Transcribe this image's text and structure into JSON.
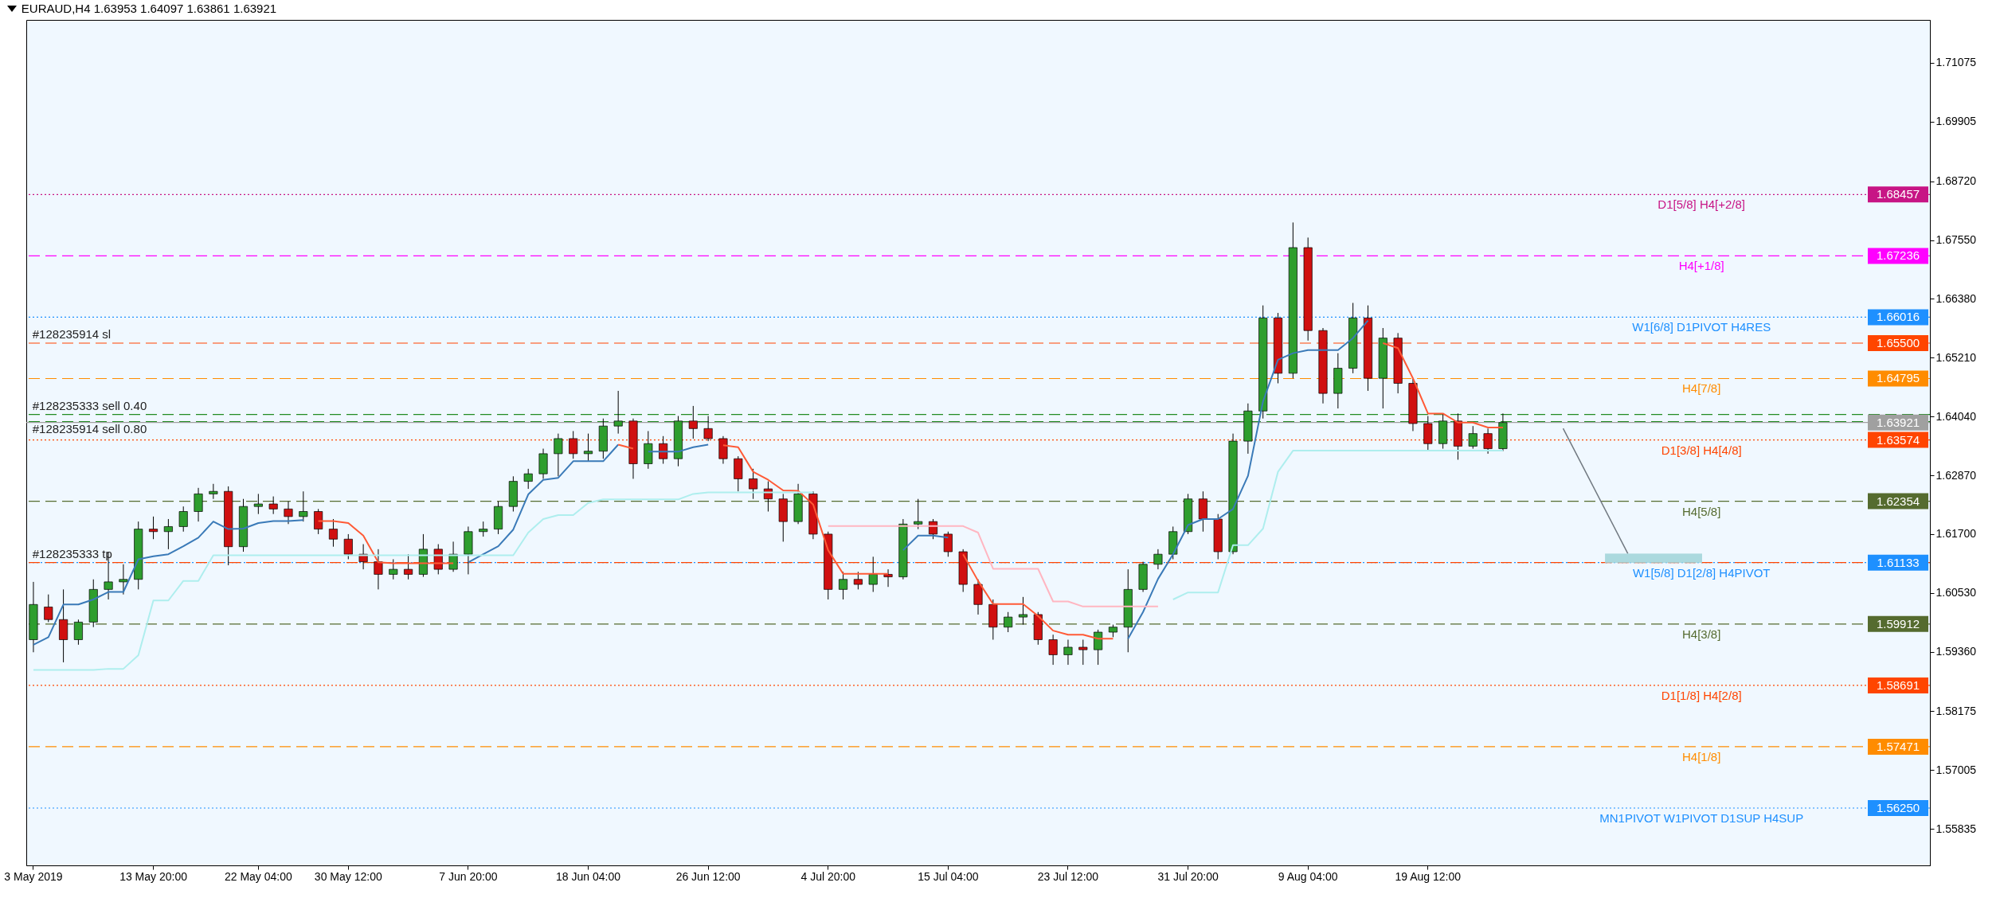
{
  "chart_data": {
    "type": "candlestick",
    "title": "EURAUD,H4  1.63953 1.64097 1.63861 1.63921",
    "categories": [
      "3 May 2019",
      null,
      null,
      null,
      null,
      null,
      null,
      null,
      "13 May 20:00",
      null,
      null,
      null,
      null,
      null,
      null,
      "22 May 04:00",
      null,
      null,
      null,
      null,
      null,
      "30 May 12:00",
      null,
      null,
      null,
      null,
      null,
      null,
      null,
      "7 Jun 20:00",
      null,
      null,
      null,
      null,
      null,
      null,
      null,
      "18 Jun 04:00",
      null,
      null,
      null,
      null,
      null,
      null,
      null,
      "26 Jun 12:00",
      null,
      null,
      null,
      null,
      null,
      null,
      null,
      "4 Jul 20:00",
      null,
      null,
      null,
      null,
      null,
      null,
      null,
      "15 Jul 04:00",
      null,
      null,
      null,
      null,
      null,
      null,
      null,
      "23 Jul 12:00",
      null,
      null,
      null,
      null,
      null,
      null,
      null,
      "31 Jul 20:00",
      null,
      null,
      null,
      null,
      null,
      null,
      null,
      "9 Aug 04:00",
      null,
      null,
      null,
      null,
      null,
      null,
      null,
      "19 Aug 12:00",
      null,
      null,
      null,
      null,
      null,
      null,
      null,
      null,
      null,
      null,
      null,
      null,
      null,
      null,
      null,
      null,
      null,
      null,
      null,
      null,
      null,
      null,
      null,
      null,
      null,
      null,
      null,
      null,
      null,
      null,
      null,
      null,
      null
    ],
    "ohlc": [
      [
        1.596,
        1.6075,
        1.5935,
        1.603
      ],
      [
        1.6025,
        1.605,
        1.5995,
        1.6
      ],
      [
        1.6,
        1.606,
        1.5915,
        1.596
      ],
      [
        1.596,
        1.6,
        1.595,
        1.5995
      ],
      [
        1.5995,
        1.608,
        1.5985,
        1.606
      ],
      [
        1.606,
        1.6135,
        1.604,
        1.6075
      ],
      [
        1.6075,
        1.611,
        1.605,
        1.608
      ],
      [
        1.608,
        1.6195,
        1.606,
        1.618
      ],
      [
        1.618,
        1.6205,
        1.616,
        1.6175
      ],
      [
        1.6175,
        1.62,
        1.614,
        1.6185
      ],
      [
        1.6185,
        1.6225,
        1.6175,
        1.6215
      ],
      [
        1.6215,
        1.6262,
        1.6195,
        1.625
      ],
      [
        1.625,
        1.627,
        1.624,
        1.6255
      ],
      [
        1.6255,
        1.6265,
        1.6108,
        1.6145
      ],
      [
        1.6145,
        1.624,
        1.6135,
        1.6225
      ],
      [
        1.6225,
        1.625,
        1.621,
        1.623
      ],
      [
        1.623,
        1.6245,
        1.621,
        1.622
      ],
      [
        1.622,
        1.6235,
        1.619,
        1.6205
      ],
      [
        1.6205,
        1.6255,
        1.6195,
        1.6215
      ],
      [
        1.6215,
        1.622,
        1.617,
        1.618
      ],
      [
        1.618,
        1.62,
        1.6145,
        1.616
      ],
      [
        1.616,
        1.617,
        1.612,
        1.613
      ],
      [
        1.613,
        1.615,
        1.61,
        1.6115
      ],
      [
        1.6115,
        1.614,
        1.606,
        1.609
      ],
      [
        1.609,
        1.612,
        1.608,
        1.61
      ],
      [
        1.61,
        1.613,
        1.608,
        1.609
      ],
      [
        1.609,
        1.617,
        1.6085,
        1.614
      ],
      [
        1.614,
        1.615,
        1.609,
        1.61
      ],
      [
        1.61,
        1.6155,
        1.6095,
        1.613
      ],
      [
        1.613,
        1.6185,
        1.609,
        1.6175
      ],
      [
        1.6175,
        1.6195,
        1.6165,
        1.618
      ],
      [
        1.618,
        1.6235,
        1.617,
        1.6225
      ],
      [
        1.6225,
        1.6285,
        1.6215,
        1.6275
      ],
      [
        1.6275,
        1.63,
        1.626,
        1.629
      ],
      [
        1.629,
        1.634,
        1.628,
        1.633
      ],
      [
        1.633,
        1.637,
        1.6285,
        1.636
      ],
      [
        1.636,
        1.6375,
        1.632,
        1.633
      ],
      [
        1.633,
        1.637,
        1.6315,
        1.6335
      ],
      [
        1.6335,
        1.64,
        1.632,
        1.6385
      ],
      [
        1.6385,
        1.6455,
        1.637,
        1.6395
      ],
      [
        1.6395,
        1.64,
        1.628,
        1.631
      ],
      [
        1.631,
        1.6375,
        1.63,
        1.635
      ],
      [
        1.635,
        1.6365,
        1.631,
        1.632
      ],
      [
        1.632,
        1.6405,
        1.6305,
        1.6395
      ],
      [
        1.6395,
        1.6425,
        1.636,
        1.638
      ],
      [
        1.638,
        1.6405,
        1.6355,
        1.636
      ],
      [
        1.636,
        1.6365,
        1.631,
        1.632
      ],
      [
        1.632,
        1.6325,
        1.6255,
        1.628
      ],
      [
        1.628,
        1.63,
        1.624,
        1.626
      ],
      [
        1.626,
        1.6275,
        1.6215,
        1.624
      ],
      [
        1.624,
        1.625,
        1.6155,
        1.6195
      ],
      [
        1.6195,
        1.627,
        1.619,
        1.625
      ],
      [
        1.625,
        1.6255,
        1.616,
        1.617
      ],
      [
        1.617,
        1.6175,
        1.604,
        1.606
      ],
      [
        1.606,
        1.6095,
        1.604,
        1.608
      ],
      [
        1.608,
        1.6095,
        1.606,
        1.607
      ],
      [
        1.607,
        1.6125,
        1.6055,
        1.609
      ],
      [
        1.609,
        1.61,
        1.6065,
        1.6085
      ],
      [
        1.6085,
        1.62,
        1.608,
        1.619
      ],
      [
        1.619,
        1.624,
        1.618,
        1.6195
      ],
      [
        1.6195,
        1.62,
        1.616,
        1.617
      ],
      [
        1.617,
        1.6175,
        1.6125,
        1.6135
      ],
      [
        1.6135,
        1.614,
        1.6055,
        1.607
      ],
      [
        1.607,
        1.608,
        1.601,
        1.603
      ],
      [
        1.603,
        1.604,
        1.596,
        1.5985
      ],
      [
        1.5985,
        1.6015,
        1.5975,
        1.6005
      ],
      [
        1.6005,
        1.6045,
        1.599,
        1.601
      ],
      [
        1.601,
        1.6015,
        1.595,
        1.596
      ],
      [
        1.596,
        1.597,
        1.591,
        1.593
      ],
      [
        1.593,
        1.596,
        1.591,
        1.5945
      ],
      [
        1.5945,
        1.596,
        1.591,
        1.594
      ],
      [
        1.594,
        1.598,
        1.591,
        1.5975
      ],
      [
        1.5975,
        1.599,
        1.5965,
        1.5985
      ],
      [
        1.5985,
        1.61,
        1.5935,
        1.606
      ],
      [
        1.606,
        1.6115,
        1.6055,
        1.611
      ],
      [
        1.611,
        1.614,
        1.61,
        1.613
      ],
      [
        1.613,
        1.6185,
        1.612,
        1.6175
      ],
      [
        1.6175,
        1.625,
        1.617,
        1.624
      ],
      [
        1.624,
        1.6255,
        1.6175,
        1.62
      ],
      [
        1.62,
        1.621,
        1.612,
        1.6135
      ],
      [
        1.6135,
        1.637,
        1.613,
        1.6355
      ],
      [
        1.6355,
        1.643,
        1.633,
        1.6415
      ],
      [
        1.6415,
        1.6625,
        1.64,
        1.66
      ],
      [
        1.66,
        1.661,
        1.647,
        1.649
      ],
      [
        1.649,
        1.679,
        1.648,
        1.674
      ],
      [
        1.674,
        1.676,
        1.6555,
        1.6575
      ],
      [
        1.6575,
        1.658,
        1.643,
        1.645
      ],
      [
        1.645,
        1.653,
        1.642,
        1.65
      ],
      [
        1.65,
        1.663,
        1.649,
        1.66
      ],
      [
        1.66,
        1.6625,
        1.6455,
        1.648
      ],
      [
        1.648,
        1.658,
        1.642,
        1.656
      ],
      [
        1.656,
        1.657,
        1.645,
        1.647
      ],
      [
        1.647,
        1.648,
        1.6375,
        1.639
      ],
      [
        1.639,
        1.6405,
        1.6335,
        1.635
      ],
      [
        1.635,
        1.641,
        1.634,
        1.6395
      ],
      [
        1.6395,
        1.641,
        1.6318,
        1.6345
      ],
      [
        1.6345,
        1.6385,
        1.634,
        1.637
      ],
      [
        1.637,
        1.638,
        1.633,
        1.634
      ],
      [
        1.634,
        1.641,
        1.6335,
        1.6392
      ],
      null,
      null,
      null,
      null,
      null,
      null,
      null,
      null,
      null,
      null,
      null,
      null,
      null,
      null,
      null,
      null,
      null,
      null,
      null,
      null,
      null,
      null,
      null,
      null,
      null,
      null,
      null,
      null
    ],
    "series": [
      {
        "type": "line",
        "color": "#3a7ab8",
        "values": [
          1.595,
          1.5965,
          1.603,
          1.603,
          1.604,
          1.6055,
          1.6055,
          1.612,
          1.6126,
          1.613,
          1.6146,
          1.6163,
          1.6195,
          1.618,
          1.6181,
          1.6192,
          1.6196,
          1.6196,
          1.6198,
          null,
          null,
          null,
          null,
          null,
          null,
          null,
          null,
          null,
          null,
          1.6114,
          1.613,
          1.6146,
          1.6179,
          1.6249,
          1.6278,
          1.6282,
          1.6315,
          1.6315,
          1.6315,
          1.6348,
          null,
          1.6334,
          1.6334,
          1.6334,
          1.6343,
          1.6348,
          null,
          null,
          null,
          null,
          null,
          null,
          null,
          null,
          null,
          null,
          null,
          null,
          1.6138,
          1.6167,
          1.6167,
          1.6163,
          null,
          null,
          null,
          null,
          null,
          null,
          null,
          null,
          null,
          null,
          null,
          1.5962,
          1.6015,
          1.6081,
          1.613,
          1.6188,
          1.62,
          1.62,
          1.622,
          1.6286,
          1.6434,
          1.6517,
          1.653,
          1.6536,
          1.6536,
          1.6536,
          1.656,
          1.6595,
          null,
          null,
          null,
          null,
          null,
          null,
          null,
          null,
          null,
          null,
          null,
          null,
          null,
          null,
          null,
          null,
          null,
          null,
          null,
          null,
          null,
          null,
          null,
          null,
          null,
          null,
          null,
          null,
          null,
          null,
          null,
          null,
          null,
          null,
          null,
          null,
          null
        ]
      },
      {
        "type": "line",
        "color": "#ff5a36",
        "values": [
          null,
          null,
          null,
          null,
          null,
          null,
          null,
          null,
          null,
          null,
          null,
          null,
          null,
          null,
          null,
          null,
          null,
          null,
          null,
          1.6196,
          1.6196,
          1.6192,
          1.6167,
          1.6114,
          1.6112,
          1.6112,
          1.6112,
          1.6112,
          1.6112,
          null,
          null,
          null,
          null,
          null,
          null,
          null,
          null,
          null,
          null,
          1.6348,
          1.634,
          null,
          null,
          null,
          null,
          null,
          1.6347,
          1.6343,
          1.6294,
          1.6278,
          1.6257,
          1.6256,
          1.6229,
          1.6138,
          1.6091,
          1.6091,
          1.6091,
          1.6091,
          null,
          null,
          null,
          null,
          1.613,
          1.6077,
          1.6031,
          1.6031,
          1.6031,
          1.6007,
          1.5978,
          1.597,
          1.597,
          1.5962,
          1.5962,
          null,
          null,
          null,
          null,
          null,
          null,
          null,
          null,
          null,
          null,
          null,
          null,
          null,
          null,
          null,
          null,
          null,
          1.655,
          1.654,
          1.648,
          1.641,
          1.641,
          1.6392,
          1.6392,
          1.6382,
          1.6382,
          null,
          null,
          null,
          null,
          null,
          null,
          null,
          null,
          null,
          null,
          null,
          null,
          null,
          null,
          null,
          null,
          null,
          null,
          null,
          null,
          null,
          null,
          null,
          null,
          null,
          null,
          null,
          null
        ]
      },
      {
        "type": "line",
        "color": "#aeeeee",
        "values": [
          1.59,
          1.59,
          1.59,
          1.59,
          1.59,
          1.5902,
          1.5902,
          1.5929,
          1.6038,
          1.6038,
          1.6077,
          1.6077,
          1.6128,
          1.6128,
          1.6128,
          1.6128,
          1.6128,
          1.6128,
          1.6128,
          1.6128,
          1.6128,
          1.6128,
          1.6128,
          1.6128,
          1.6128,
          1.6128,
          1.6128,
          1.6128,
          1.6128,
          1.6128,
          1.6128,
          1.6128,
          1.6128,
          1.6173,
          1.62,
          1.6208,
          1.6208,
          1.6232,
          1.6239,
          1.6239,
          1.6239,
          1.6239,
          1.6239,
          1.6239,
          1.625,
          1.6253,
          1.6253,
          1.6253,
          1.6253,
          1.6253,
          1.6253,
          1.6253,
          1.6253,
          null,
          null,
          null,
          null,
          null,
          null,
          null,
          null,
          null,
          null,
          null,
          null,
          null,
          null,
          null,
          null,
          null,
          null,
          null,
          null,
          null,
          null,
          null,
          1.604,
          1.6054,
          1.6054,
          1.6054,
          1.6148,
          1.6148,
          1.6181,
          1.6294,
          1.6336,
          1.6336,
          1.6336,
          1.6336,
          1.6336,
          1.6336,
          1.6336,
          1.6336,
          1.6336,
          1.6336,
          1.6336,
          1.6336,
          1.6336,
          1.6336,
          1.6336,
          null,
          null,
          null,
          null,
          null,
          null,
          null,
          null,
          null,
          null,
          null,
          null,
          null,
          null,
          null,
          null,
          null,
          null,
          null,
          null,
          null,
          null,
          null,
          null,
          null,
          null,
          null,
          null
        ]
      },
      {
        "type": "line",
        "color": "#ffb6c1",
        "values": [
          null,
          null,
          null,
          null,
          null,
          null,
          null,
          null,
          null,
          null,
          null,
          null,
          null,
          null,
          null,
          null,
          null,
          null,
          null,
          null,
          null,
          null,
          null,
          null,
          null,
          null,
          null,
          null,
          null,
          null,
          null,
          null,
          null,
          null,
          null,
          null,
          null,
          null,
          null,
          null,
          null,
          null,
          null,
          null,
          null,
          null,
          null,
          null,
          null,
          null,
          null,
          null,
          null,
          1.6186,
          1.6186,
          1.6186,
          1.6186,
          1.6186,
          1.6186,
          1.6186,
          1.6186,
          1.6186,
          1.6186,
          1.6173,
          1.6101,
          1.6101,
          1.6101,
          1.6101,
          1.6036,
          1.6036,
          1.6026,
          1.6026,
          1.6026,
          1.6026,
          1.6026,
          1.6026,
          null,
          null,
          null,
          null,
          null,
          null,
          null,
          null,
          null,
          null,
          null,
          null,
          null,
          null,
          null,
          null,
          null,
          null,
          null,
          null,
          null,
          null,
          null,
          null,
          null,
          null,
          null,
          null,
          null,
          null,
          null,
          null,
          null,
          null,
          null,
          null,
          null,
          null,
          null,
          null,
          null,
          null,
          null,
          null,
          null,
          null,
          null,
          null,
          null,
          null,
          null
        ]
      }
    ],
    "ylim": [
      1.5511,
      1.7193
    ],
    "yticks": [
      1.71075,
      1.69905,
      {
        "value": 1.6872,
        "label": "1.68720"
      },
      {
        "value": 1.6755,
        "label": "1.67550"
      },
      {
        "value": 1.6638,
        "label": "1.66380"
      },
      {
        "value": 1.6521,
        "label": "1.65210"
      },
      {
        "value": 1.6404,
        "label": "1.64040"
      },
      {
        "value": 1.6287,
        "label": "1.62870"
      },
      {
        "value": 1.617,
        "label": "1.61700"
      },
      {
        "value": 1.6053,
        "label": "1.60530"
      },
      {
        "value": 1.5936,
        "label": "1.59360"
      },
      1.58175,
      1.57005,
      1.55835
    ],
    "ref_lines": [
      {
        "axis": "y",
        "value": 1.68457,
        "label": "D1[5/8] H4[+2/8]",
        "color": "#c71585",
        "line_style": "dotted"
      },
      {
        "axis": "y",
        "value": 1.67236,
        "label": "H4[+1/8]",
        "color": "#ff00ff",
        "line_style": "dashed"
      },
      {
        "axis": "y",
        "value": 1.66016,
        "label": "W1[6/8] D1PIVOT H4RES",
        "color": "#1e90ff",
        "line_style": "dotted"
      },
      {
        "axis": "y",
        "value": 1.655,
        "color": "#ff4500",
        "line_style": "dashed"
      },
      {
        "axis": "y",
        "value": 1.64795,
        "label": "H4[7/8]",
        "color": "#ff8c00",
        "line_style": "dashed"
      },
      {
        "axis": "y",
        "value": 1.6408,
        "color": "#228b22",
        "line_style": "dashed"
      },
      {
        "axis": "y",
        "value": 1.6394,
        "color": "#228b22",
        "line_style": "dashed"
      },
      {
        "axis": "y",
        "value": 1.63921,
        "color": "#a0a0a0",
        "line_style": "solid"
      },
      {
        "axis": "y",
        "value": 1.63574,
        "label": "D1[3/8] H4[4/8]",
        "color": "#ff4500",
        "line_style": "dotted"
      },
      {
        "axis": "y",
        "value": 1.62354,
        "label": "H4[5/8]",
        "color": "#556b2f",
        "line_style": "dashed"
      },
      {
        "axis": "y",
        "value": 1.61133,
        "label": "W1[5/8] D1[2/8] H4PIVOT",
        "color": "#1e90ff",
        "line_style": "dotted"
      },
      {
        "axis": "y",
        "value": 1.61133,
        "color": "#ff4500",
        "line_style": "dashed"
      },
      {
        "axis": "y",
        "value": 1.59912,
        "label": "H4[3/8]",
        "color": "#556b2f",
        "line_style": "dashed"
      },
      {
        "axis": "y",
        "value": 1.58691,
        "label": "D1[1/8] H4[2/8]",
        "color": "#ff4500",
        "line_style": "dotted"
      },
      {
        "axis": "y",
        "value": 1.57471,
        "label": "H4[1/8]",
        "color": "#ff8c00",
        "line_style": "dashed"
      },
      {
        "axis": "y",
        "value": 1.5625,
        "label": "MN1PIVOT W1PIVOT D1SUP H4SUP",
        "color": "#1e90ff",
        "line_style": "dotted"
      }
    ],
    "annotations": [
      {
        "text": "#128235914 sl",
        "x": "3 May 2019",
        "y": 1.655
      },
      {
        "text": "#128235333 sell 0.40",
        "x": "3 May 2019",
        "y": 1.6408
      },
      {
        "text": "#128235914 sell 0.80",
        "x": "3 May 2019",
        "y": 1.6394
      },
      {
        "text": "#128235333 tp",
        "x": "3 May 2019",
        "y": 1.61133
      },
      {
        "text": "1.68457",
        "y": 1.68457
      },
      {
        "text": "1.67236",
        "y": 1.67236
      },
      {
        "text": "1.66016",
        "y": 1.66016
      },
      {
        "text": "1.65500",
        "y": 1.655
      },
      {
        "text": "1.64795",
        "y": 1.64795
      },
      {
        "text": "1.63921",
        "y": 1.63921
      },
      {
        "text": "1.63574",
        "y": 1.63574
      },
      {
        "text": "1.62354",
        "y": 1.62354
      },
      {
        "text": "1.61133",
        "y": 1.61133
      },
      {
        "text": "1.59912",
        "y": 1.59912
      },
      {
        "text": "1.58691",
        "y": 1.58691
      },
      {
        "text": "1.57471",
        "y": 1.57471
      },
      {
        "text": "1.56250",
        "y": 1.5625
      }
    ]
  }
}
